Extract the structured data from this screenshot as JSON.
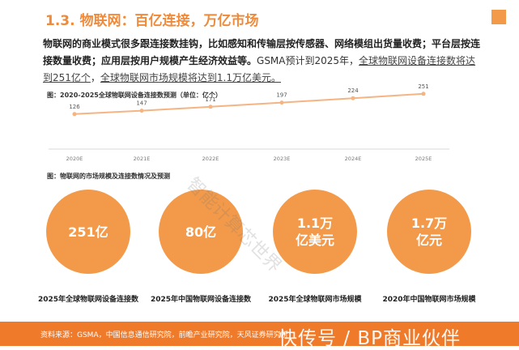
{
  "header": {
    "title": "1.3. 物联网：百亿连接，万亿市场"
  },
  "body": {
    "para_bold": "物联网的商业模式很多跟连接数挂钩，比如感知和传输层按传感器、网络模组出货量收费；平台层按连接数量收费；应用层按用户规模产生经济效益等。",
    "para_rest1": "GSMA预计到2025年，",
    "para_u1": "全球物联网设备连接数将达到251亿个",
    "para_rest2": "，",
    "para_u2": "全球物联网市场规模将达到1.1万亿美元。"
  },
  "chart_caption": "图：2020-2025全球物联网设备连接数预测（单位：亿个）",
  "chart_data": {
    "type": "line",
    "categories": [
      "2020E",
      "2021E",
      "2022E",
      "2023E",
      "2024E",
      "2025E"
    ],
    "values": [
      126,
      147,
      171,
      197,
      224,
      251
    ],
    "title": "",
    "xlabel": "",
    "ylabel": "",
    "ylim": [
      0,
      300
    ],
    "grid": false,
    "line_color": "#f4b483"
  },
  "circles_caption": "图：物联网的市场规模及连接数情况及预测",
  "circles": [
    {
      "value": "251亿",
      "label": "2025年全球物联网设备连接数"
    },
    {
      "value": "80亿",
      "label": "2025年中国物联网设备连接数"
    },
    {
      "value": "1.1万\n亿美元",
      "label": "2025年全球物联网市场规模"
    },
    {
      "value": "1.7万\n亿元",
      "label": "2020年中国物联网市场规模"
    }
  ],
  "footer": {
    "source": "资料来源：GSMA，中国信息通信研究院，前瞻产业研究院，天风证券研究所"
  },
  "watermarks": {
    "diagonal": "智能计算芯世界",
    "bottom": "快传号 / BP商业伙伴"
  },
  "colors": {
    "accent": "#ef8a3a",
    "circle": "#f39a4a",
    "footer": "#ef7a2a"
  }
}
